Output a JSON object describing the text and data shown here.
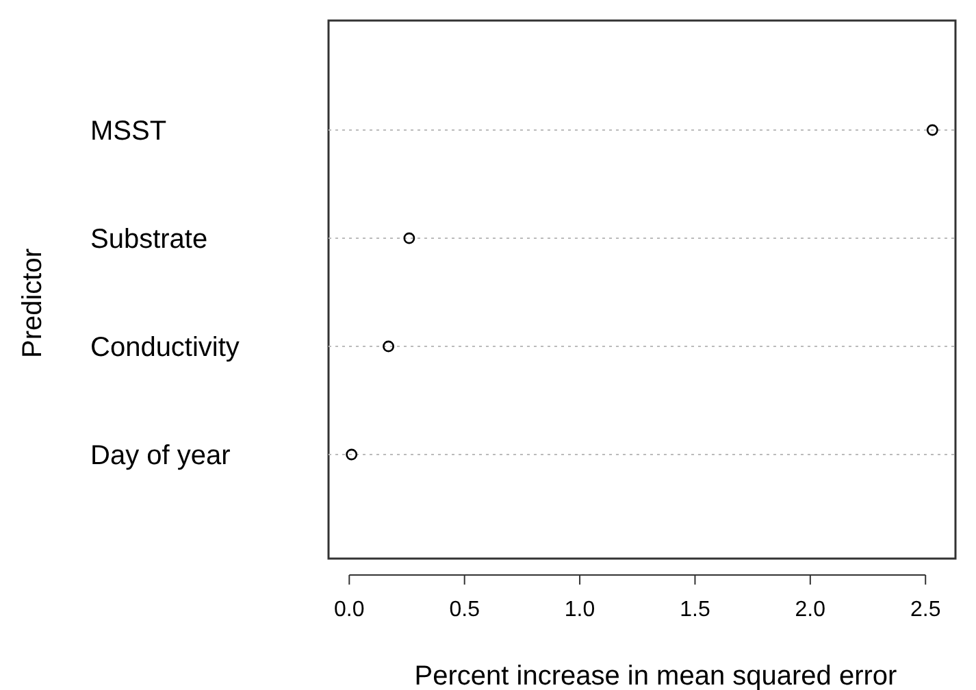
{
  "chart_data": {
    "type": "scatter",
    "orientation": "horizontal",
    "xlabel": "Percent increase in mean squared error",
    "ylabel": "Predictor",
    "categories": [
      "MSST",
      "Substrate",
      "Conductivity",
      "Day of year"
    ],
    "values": [
      2.53,
      0.26,
      0.17,
      0.01
    ],
    "color": "#000000",
    "xlim": [
      -0.09,
      2.63
    ],
    "xticks": [
      {
        "value": 0,
        "label": "0.0"
      },
      {
        "value": 0.5,
        "label": "0.5"
      },
      {
        "value": 1,
        "label": "1.0"
      },
      {
        "value": 1.5,
        "label": "1.5"
      },
      {
        "value": 2,
        "label": "2.0"
      },
      {
        "value": 2.5,
        "label": "2.5"
      }
    ],
    "grid": "y",
    "marker": "circle"
  }
}
